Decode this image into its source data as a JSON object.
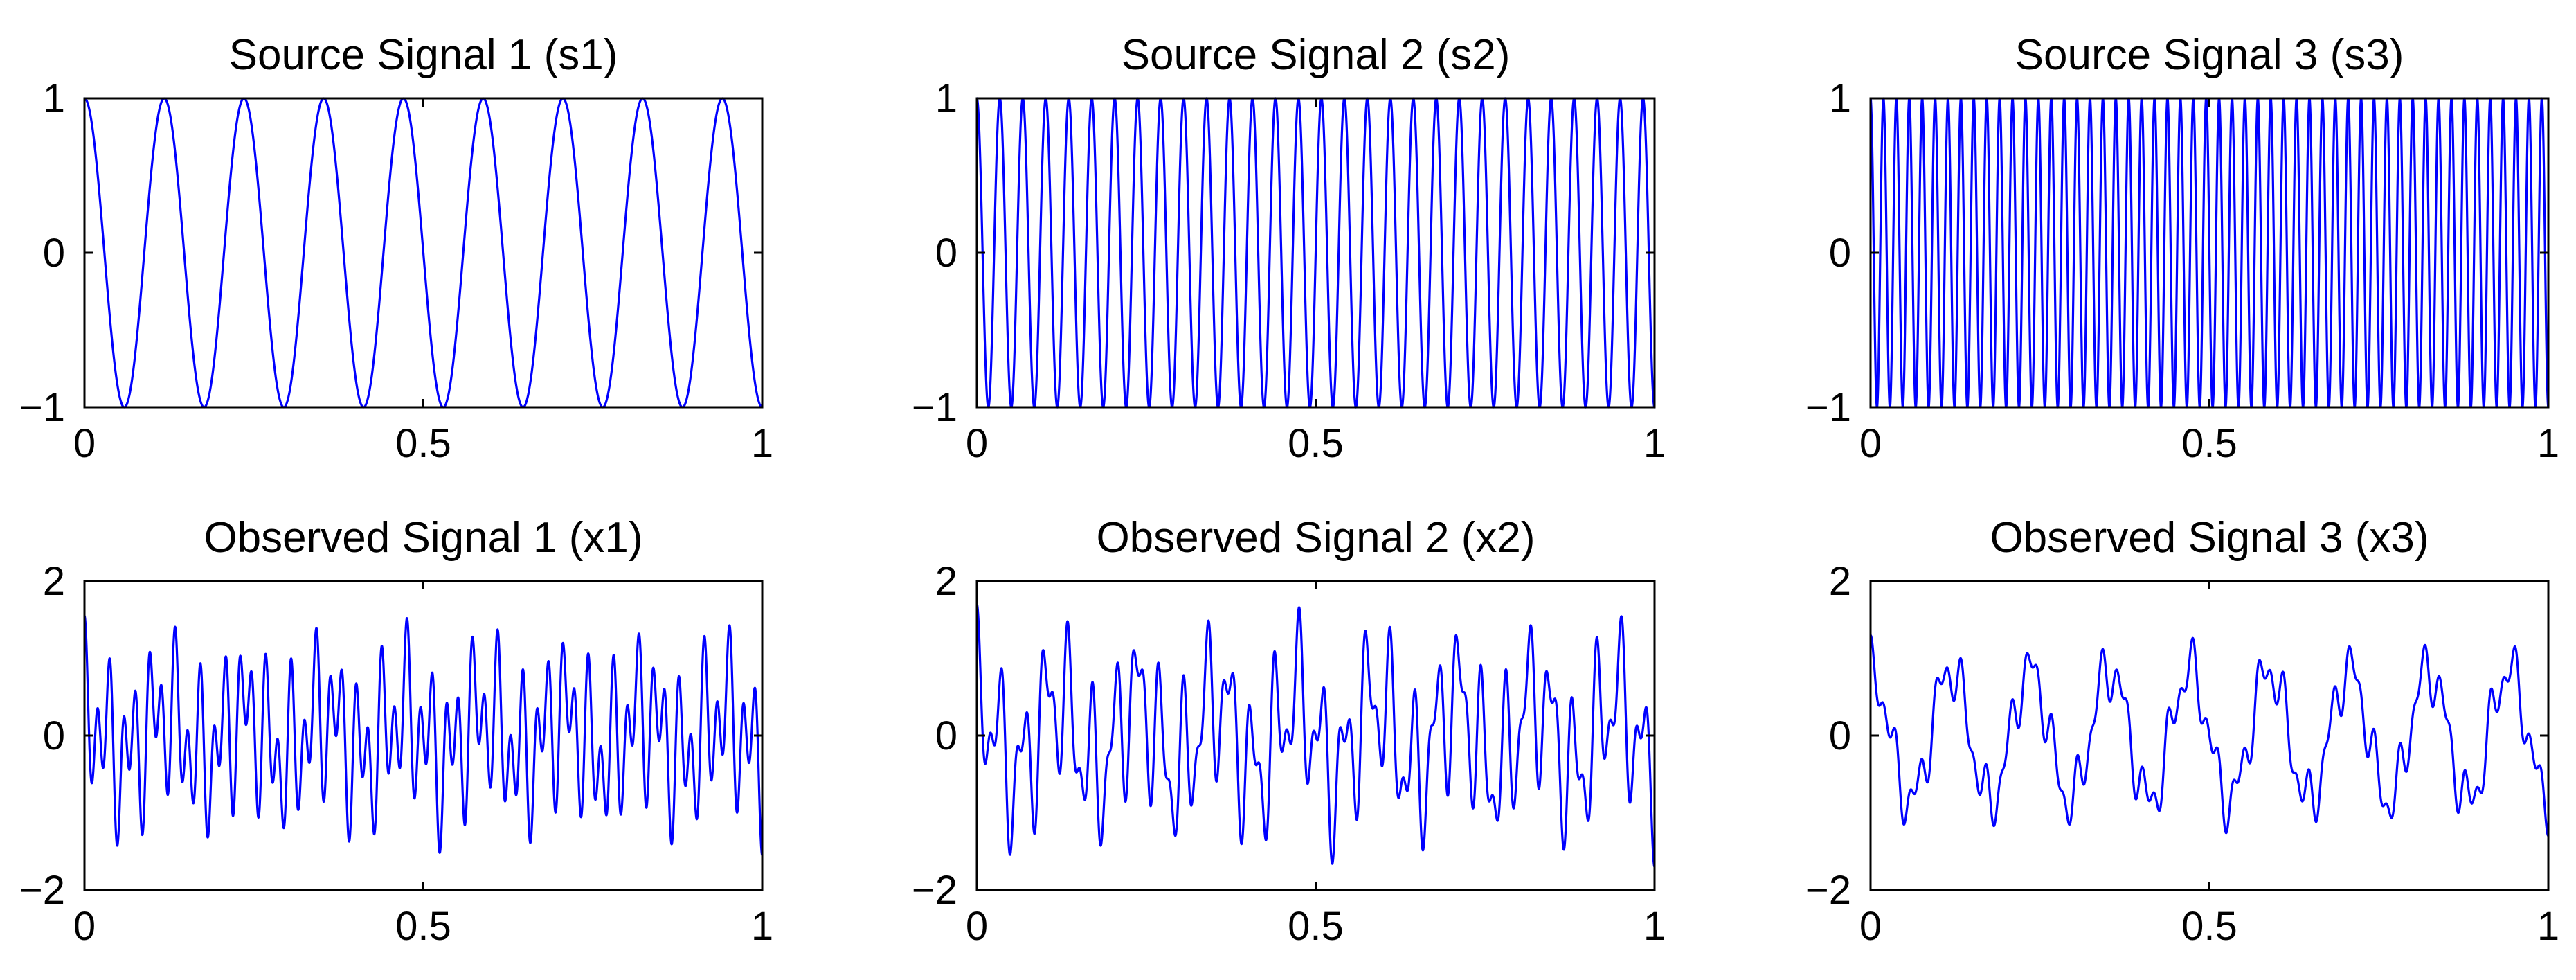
{
  "figure": {
    "background": "#ffffff",
    "line_color": "#0000ff",
    "axis_color": "#000000"
  },
  "chart_data": [
    {
      "type": "line",
      "title": "Source Signal 1 (s1)",
      "xlabel": "",
      "ylabel": "",
      "xlim": [
        0,
        1
      ],
      "ylim": [
        -1,
        1
      ],
      "x_ticks": [
        0,
        0.5,
        1
      ],
      "x_tick_labels": [
        "0",
        "0.5",
        "1"
      ],
      "y_ticks": [
        -1,
        0,
        1
      ],
      "y_tick_labels": [
        "−1",
        "0",
        "1"
      ],
      "grid": false,
      "series": [
        {
          "formula": "cosine",
          "frequency": 8.5,
          "amplitude": 1,
          "color": "#0000ff",
          "samples": 2000
        }
      ]
    },
    {
      "type": "line",
      "title": "Source Signal 2 (s2)",
      "xlabel": "",
      "ylabel": "",
      "xlim": [
        0,
        1
      ],
      "ylim": [
        -1,
        1
      ],
      "x_ticks": [
        0,
        0.5,
        1
      ],
      "x_tick_labels": [
        "0",
        "0.5",
        "1"
      ],
      "y_ticks": [
        -1,
        0,
        1
      ],
      "y_tick_labels": [
        "−1",
        "0",
        "1"
      ],
      "grid": false,
      "series": [
        {
          "formula": "cosine",
          "frequency": 29.5,
          "amplitude": 1,
          "color": "#0000ff",
          "samples": 3000
        }
      ]
    },
    {
      "type": "line",
      "title": "Source Signal 3 (s3)",
      "xlabel": "",
      "ylabel": "",
      "xlim": [
        0,
        1
      ],
      "ylim": [
        -1,
        1
      ],
      "x_ticks": [
        0,
        0.5,
        1
      ],
      "x_tick_labels": [
        "0",
        "0.5",
        "1"
      ],
      "y_ticks": [
        -1,
        0,
        1
      ],
      "y_tick_labels": [
        "−1",
        "0",
        "1"
      ],
      "grid": false,
      "series": [
        {
          "formula": "cosine",
          "frequency": 52.5,
          "amplitude": 1,
          "color": "#0000ff",
          "samples": 4000
        }
      ]
    },
    {
      "type": "line",
      "title": "Observed Signal 1 (x1)",
      "xlabel": "",
      "ylabel": "",
      "xlim": [
        0,
        1
      ],
      "ylim": [
        -2,
        2
      ],
      "x_ticks": [
        0,
        0.5,
        1
      ],
      "x_tick_labels": [
        "0",
        "0.5",
        "1"
      ],
      "y_ticks": [
        -2,
        0,
        2
      ],
      "y_tick_labels": [
        "−2",
        "0",
        "2"
      ],
      "grid": false,
      "series": [
        {
          "formula": "mixture",
          "weights": [
            0.3,
            0.55,
            0.7
          ],
          "color": "#0000ff",
          "samples": 4000
        }
      ]
    },
    {
      "type": "line",
      "title": "Observed Signal 2 (x2)",
      "xlabel": "",
      "ylabel": "",
      "xlim": [
        0,
        1
      ],
      "ylim": [
        -2,
        2
      ],
      "x_ticks": [
        0,
        0.5,
        1
      ],
      "x_tick_labels": [
        "0",
        "0.5",
        "1"
      ],
      "y_ticks": [
        -2,
        0,
        2
      ],
      "y_tick_labels": [
        "−2",
        "0",
        "2"
      ],
      "grid": false,
      "series": [
        {
          "formula": "mixture",
          "weights": [
            0.5,
            0.75,
            0.45
          ],
          "color": "#0000ff",
          "samples": 4000
        }
      ]
    },
    {
      "type": "line",
      "title": "Observed Signal 3 (x3)",
      "xlabel": "",
      "ylabel": "",
      "xlim": [
        0,
        1
      ],
      "ylim": [
        -2,
        2
      ],
      "x_ticks": [
        0,
        0.5,
        1
      ],
      "x_tick_labels": [
        "0",
        "0.5",
        "1"
      ],
      "y_ticks": [
        -2,
        0,
        2
      ],
      "y_tick_labels": [
        "−2",
        "0",
        "2"
      ],
      "grid": false,
      "series": [
        {
          "formula": "mixture",
          "weights": [
            0.85,
            0.25,
            0.2
          ],
          "color": "#0000ff",
          "samples": 4000
        }
      ]
    }
  ]
}
